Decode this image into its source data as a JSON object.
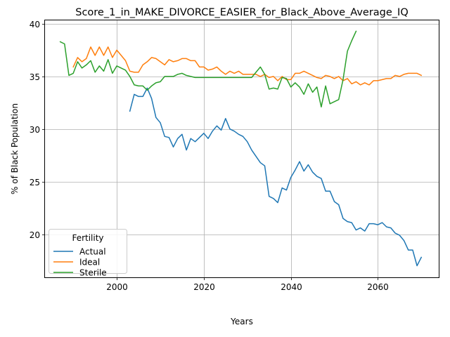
{
  "chart_data": {
    "type": "line",
    "title": "Score_1_in_MAKE_DIVORCE_EASIER_for_Black_Above_Average_IQ",
    "xlabel": "Years",
    "ylabel": "% of Black Population",
    "xlim": [
      1983.5,
      2074
    ],
    "ylim": [
      15.9,
      40.4
    ],
    "xticks": [
      2000,
      2020,
      2040,
      2060
    ],
    "yticks": [
      20,
      25,
      30,
      35,
      40
    ],
    "grid": true,
    "legend": {
      "title": "Fertility",
      "position": "lower-left"
    },
    "series": [
      {
        "name": "Actual",
        "color": "#1f77b4",
        "x": [
          2003,
          2004,
          2005,
          2006,
          2007,
          2008,
          2009,
          2010,
          2011,
          2012,
          2013,
          2014,
          2015,
          2016,
          2017,
          2018,
          2019,
          2020,
          2021,
          2022,
          2023,
          2024,
          2025,
          2026,
          2027,
          2028,
          2029,
          2030,
          2031,
          2032,
          2033,
          2034,
          2035,
          2036,
          2037,
          2038,
          2039,
          2040,
          2041,
          2042,
          2043,
          2044,
          2045,
          2046,
          2047,
          2048,
          2049,
          2050,
          2051,
          2052,
          2053,
          2054,
          2055,
          2056,
          2057,
          2058,
          2059,
          2060,
          2061,
          2062,
          2063,
          2064,
          2065,
          2066,
          2067,
          2068,
          2069,
          2070
        ],
        "y": [
          31.7,
          33.3,
          33.1,
          33.1,
          33.9,
          32.9,
          31.1,
          30.6,
          29.3,
          29.2,
          28.3,
          29.1,
          29.5,
          28.0,
          29.1,
          28.8,
          29.2,
          29.6,
          29.1,
          29.8,
          30.3,
          29.9,
          31.0,
          30.0,
          29.8,
          29.5,
          29.3,
          28.8,
          28.0,
          27.4,
          26.8,
          26.5,
          23.6,
          23.4,
          23.0,
          24.4,
          24.2,
          25.4,
          26.1,
          26.9,
          26.0,
          26.6,
          25.9,
          25.5,
          25.3,
          24.1,
          24.1,
          23.1,
          22.8,
          21.5,
          21.2,
          21.1,
          20.4,
          20.6,
          20.3,
          21.0,
          21.0,
          20.9,
          21.1,
          20.7,
          20.6,
          20.1,
          19.9,
          19.4,
          18.5,
          18.5,
          17.0,
          17.8
        ]
      },
      {
        "name": "Ideal",
        "color": "#ff7f0e",
        "x": [
          1990,
          1991,
          1992,
          1993,
          1994,
          1995,
          1996,
          1997,
          1998,
          1999,
          2000,
          2001,
          2002,
          2003,
          2004,
          2005,
          2006,
          2007,
          2008,
          2009,
          2010,
          2011,
          2012,
          2013,
          2014,
          2015,
          2016,
          2017,
          2018,
          2019,
          2020,
          2021,
          2022,
          2023,
          2024,
          2025,
          2026,
          2027,
          2028,
          2029,
          2030,
          2031,
          2032,
          2033,
          2034,
          2035,
          2036,
          2037,
          2038,
          2039,
          2040,
          2041,
          2042,
          2043,
          2044,
          2045,
          2046,
          2047,
          2048,
          2049,
          2050,
          2051,
          2052,
          2053,
          2054,
          2055,
          2056,
          2057,
          2058,
          2059,
          2060,
          2061,
          2062,
          2063,
          2064,
          2065,
          2066,
          2067,
          2068,
          2069,
          2070
        ],
        "y": [
          35.9,
          36.8,
          36.4,
          36.7,
          37.8,
          37.0,
          37.8,
          37.0,
          37.8,
          36.8,
          37.5,
          37.0,
          36.5,
          35.5,
          35.4,
          35.4,
          36.1,
          36.4,
          36.8,
          36.7,
          36.4,
          36.1,
          36.6,
          36.4,
          36.5,
          36.7,
          36.7,
          36.5,
          36.5,
          35.9,
          35.9,
          35.6,
          35.7,
          35.9,
          35.5,
          35.2,
          35.5,
          35.3,
          35.5,
          35.2,
          35.2,
          35.2,
          35.2,
          35.0,
          35.2,
          34.9,
          35.0,
          34.6,
          35.0,
          34.7,
          34.7,
          35.3,
          35.3,
          35.5,
          35.3,
          35.1,
          34.9,
          34.8,
          35.1,
          35.0,
          34.8,
          35.0,
          34.6,
          34.8,
          34.3,
          34.5,
          34.2,
          34.4,
          34.2,
          34.6,
          34.6,
          34.7,
          34.8,
          34.8,
          35.1,
          35.0,
          35.2,
          35.3,
          35.3,
          35.3,
          35.1
        ]
      },
      {
        "name": "Sterile",
        "color": "#2ca02c",
        "x": [
          1987,
          1988,
          1989,
          1990,
          1991,
          1992,
          1993,
          1994,
          1995,
          1996,
          1997,
          1998,
          1999,
          2000,
          2001,
          2002,
          2003,
          2004,
          2005,
          2006,
          2007,
          2008,
          2009,
          2010,
          2011,
          2012,
          2013,
          2014,
          2015,
          2016,
          2017,
          2018,
          2019,
          2020,
          2021,
          2022,
          2023,
          2024,
          2025,
          2026,
          2027,
          2028,
          2029,
          2030,
          2031,
          2032,
          2033,
          2034,
          2035,
          2036,
          2037,
          2038,
          2039,
          2040,
          2041,
          2042,
          2043,
          2044,
          2045,
          2046,
          2047,
          2048,
          2049,
          2050,
          2051,
          2052,
          2053,
          2054,
          2055
        ],
        "y": [
          38.3,
          38.1,
          35.1,
          35.3,
          36.4,
          35.8,
          36.1,
          36.5,
          35.4,
          36.0,
          35.5,
          36.6,
          35.3,
          36.0,
          35.8,
          35.6,
          35.0,
          34.2,
          34.1,
          34.1,
          33.7,
          34.1,
          34.4,
          34.5,
          35.0,
          35.0,
          35.0,
          35.2,
          35.3,
          35.1,
          35.0,
          34.9,
          34.9,
          34.9,
          34.9,
          34.9,
          34.9,
          34.9,
          34.9,
          34.9,
          34.9,
          34.9,
          34.9,
          34.9,
          34.9,
          35.4,
          35.9,
          35.2,
          33.8,
          33.9,
          33.8,
          34.9,
          34.8,
          34.0,
          34.4,
          34.0,
          33.3,
          34.3,
          33.5,
          34.0,
          32.1,
          34.1,
          32.4,
          32.6,
          32.8,
          34.7,
          37.4,
          38.4,
          39.3
        ]
      }
    ]
  }
}
